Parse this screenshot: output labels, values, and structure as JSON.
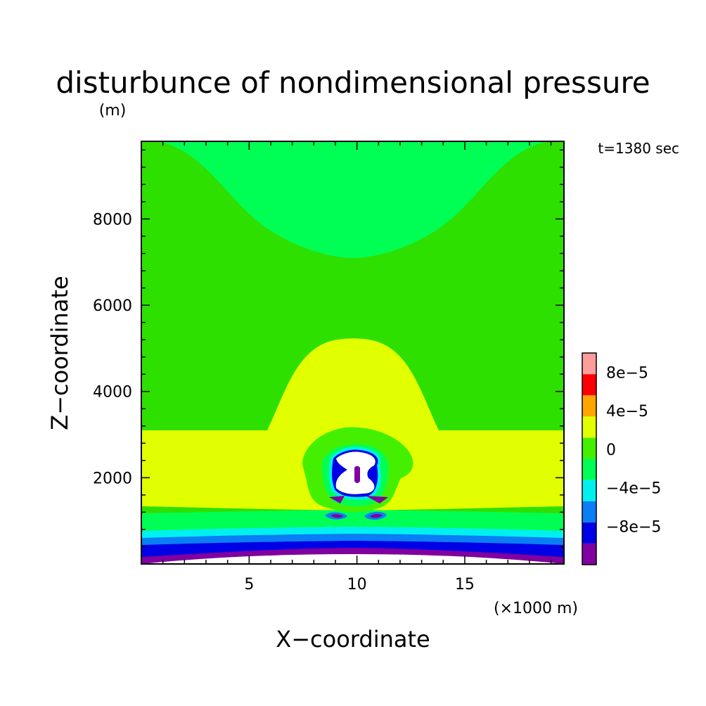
{
  "chart_data": {
    "type": "heatmap",
    "title": "disturbunce of nondimensional pressure",
    "subtitle": "(m)",
    "time_label": "t=1380 sec",
    "xlabel": "X−coordinate",
    "x_unit_label": "(×1000 m)",
    "ylabel": "Z−coordinate",
    "xlim": [
      0,
      19.6
    ],
    "ylim": [
      0,
      9800
    ],
    "x_ticks": [
      5,
      10,
      15
    ],
    "x_tick_labels": [
      "5",
      "10",
      "15"
    ],
    "y_ticks": [
      2000,
      4000,
      6000,
      8000
    ],
    "y_tick_labels": [
      "2000",
      "4000",
      "6000",
      "8000"
    ],
    "colorbar": {
      "levels": [
        -0.00012,
        -0.0001,
        -8e-05,
        -6e-05,
        -4e-05,
        -2e-05,
        0,
        2e-05,
        4e-05,
        6e-05,
        8e-05,
        0.0001
      ],
      "level_ticks": [
        -8e-05,
        -4e-05,
        0,
        4e-05,
        8e-05
      ],
      "labels": [
        "−8e−5",
        "−4e−5",
        "0",
        "4e−5",
        "8e−5"
      ],
      "colors": [
        "#8000a0",
        "#0000e6",
        "#0a7ef5",
        "#00f0f0",
        "#00ff55",
        "#44f000",
        "#e2ff00",
        "#ffa500",
        "#ff0000",
        "#ff9c9c"
      ]
    },
    "field_colors": {
      "white": "#ffffff",
      "purple": "#8000a0",
      "blue": "#0000e6",
      "midblue": "#0a7ef5",
      "cyan": "#00f0f0",
      "lightgreen": "#00ff55",
      "green": "#44f000",
      "yellow": "#e2ff00"
    }
  }
}
